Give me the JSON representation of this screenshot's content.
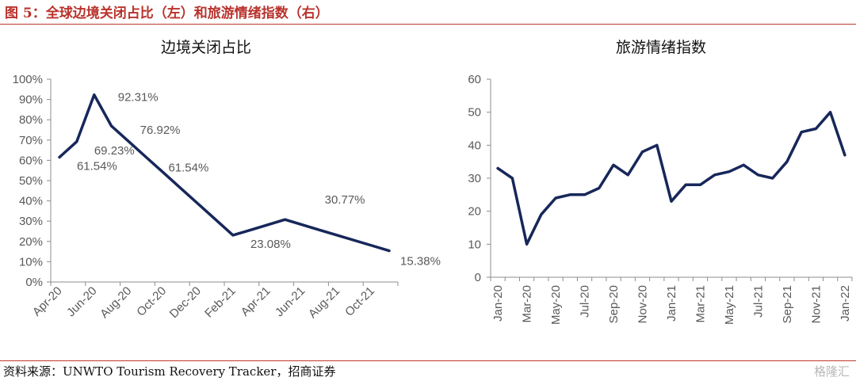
{
  "header": {
    "figure_title": "图 5：全球边境关闭占比（左）和旅游情绪指数（右）"
  },
  "footer": {
    "source": "资料来源：UNWTO Tourism Recovery Tracker，招商证券",
    "watermark": "格隆汇"
  },
  "chart_data": [
    {
      "type": "line",
      "title": "边境关闭占比",
      "xlabel": "",
      "ylabel": "",
      "x": [
        "Apr-20",
        "May-20",
        "Jun-20",
        "Jul-20",
        "Aug-20",
        "Sep-20",
        "Oct-20",
        "Nov-20",
        "Dec-20",
        "Jan-21",
        "Feb-21",
        "Mar-21",
        "Apr-21",
        "May-21",
        "Jun-21",
        "Jul-21",
        "Aug-21",
        "Sep-21",
        "Oct-21",
        "Nov-21"
      ],
      "x_tick_labels": [
        "Apr-20",
        "Jun-20",
        "Aug-20",
        "Oct-20",
        "Dec-20",
        "Feb-21",
        "Apr-21",
        "Jun-21",
        "Aug-21",
        "Oct-21"
      ],
      "y_ticks": [
        "0%",
        "10%",
        "20%",
        "30%",
        "40%",
        "50%",
        "60%",
        "70%",
        "80%",
        "90%",
        "100%"
      ],
      "ylim": [
        0,
        100
      ],
      "grid": false,
      "series": [
        {
          "values": [
            61.54,
            69.23,
            92.31,
            76.92,
            69.23,
            61.54,
            53.85,
            46.15,
            38.46,
            30.77,
            23.08,
            25.64,
            28.21,
            30.77,
            28.21,
            25.64,
            23.08,
            20.51,
            17.95,
            15.38
          ]
        }
      ],
      "data_labels": [
        {
          "index": 0,
          "text": "61.54%"
        },
        {
          "index": 1,
          "text": "69.23%"
        },
        {
          "index": 2,
          "text": "92.31%"
        },
        {
          "index": 3,
          "text": "76.92%"
        },
        {
          "index": 5,
          "text": "61.54%"
        },
        {
          "index": 10,
          "text": "23.08%"
        },
        {
          "index": 13,
          "text": "30.77%"
        },
        {
          "index": 19,
          "text": "15.38%"
        }
      ],
      "color": "#17275a"
    },
    {
      "type": "line",
      "title": "旅游情绪指数",
      "xlabel": "",
      "ylabel": "",
      "x": [
        "Jan-20",
        "Feb-20",
        "Mar-20",
        "Apr-20",
        "May-20",
        "Jun-20",
        "Jul-20",
        "Aug-20",
        "Sep-20",
        "Oct-20",
        "Nov-20",
        "Dec-20",
        "Jan-21",
        "Feb-21",
        "Mar-21",
        "Apr-21",
        "May-21",
        "Jun-21",
        "Jul-21",
        "Aug-21",
        "Sep-21",
        "Oct-21",
        "Nov-21",
        "Dec-21",
        "Jan-22"
      ],
      "x_tick_labels": [
        "Jan-20",
        "Mar-20",
        "May-20",
        "Jul-20",
        "Sep-20",
        "Nov-20",
        "Jan-21",
        "Mar-21",
        "May-21",
        "Jul-21",
        "Sep-21",
        "Nov-21",
        "Jan-22"
      ],
      "y_ticks": [
        "0",
        "10",
        "20",
        "30",
        "40",
        "50",
        "60"
      ],
      "ylim": [
        0,
        60
      ],
      "grid": false,
      "series": [
        {
          "values": [
            33,
            30,
            10,
            19,
            24,
            25,
            25,
            27,
            34,
            31,
            38,
            40,
            23,
            28,
            28,
            31,
            32,
            34,
            31,
            30,
            35,
            44,
            45,
            50,
            37
          ]
        }
      ],
      "color": "#17275a"
    }
  ]
}
